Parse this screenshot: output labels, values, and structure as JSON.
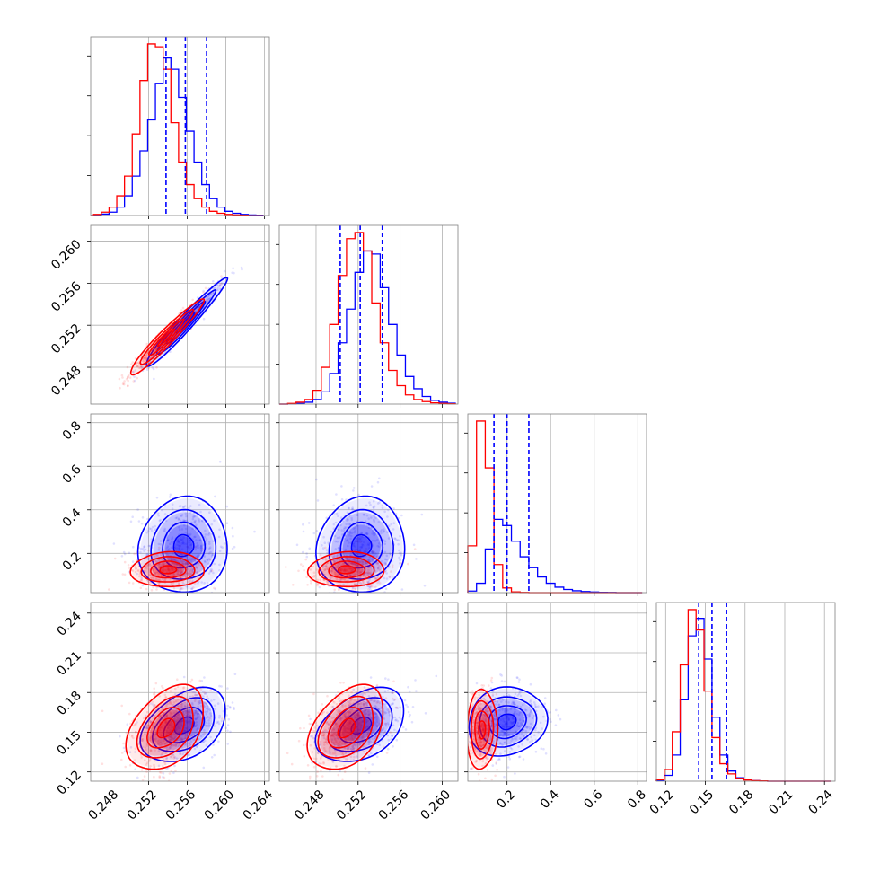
{
  "chart_data": {
    "type": "corner",
    "description_free": true,
    "grid": true,
    "series": [
      {
        "name": "",
        "color": "#0000ff"
      },
      {
        "name": "",
        "color": "#ff0000"
      }
    ],
    "quantile_lines": {
      "style": "dashed",
      "color": "#0000ff"
    },
    "params": [
      {
        "range": [
          0.246,
          0.2645
        ],
        "ticks": [
          0.248,
          0.252,
          0.256,
          0.26,
          0.264
        ],
        "tick_labels": [
          "0.248",
          "0.252",
          "0.256",
          "0.260",
          "0.264"
        ],
        "quantiles": [
          0.2538,
          0.2558,
          0.258
        ],
        "hist_blue": {
          "edges_start": 0.2455,
          "bin_width": 0.0008,
          "values": [
            0,
            2,
            5,
            12,
            30,
            70,
            140,
            230,
            340,
            470,
            560,
            520,
            420,
            300,
            190,
            110,
            60,
            30,
            15,
            8,
            4,
            2,
            1
          ]
        },
        "hist_red": {
          "edges_start": 0.2455,
          "bin_width": 0.0008,
          "values": [
            0,
            4,
            12,
            30,
            70,
            140,
            290,
            480,
            610,
            600,
            520,
            330,
            190,
            110,
            60,
            30,
            15,
            8,
            4,
            2,
            1,
            0,
            0
          ]
        }
      },
      {
        "range": [
          0.2445,
          0.2615
        ],
        "ticks": [
          0.248,
          0.252,
          0.256,
          0.26
        ],
        "tick_labels": [
          "0.248",
          "0.252",
          "0.256",
          "0.260"
        ],
        "quantiles": [
          0.2503,
          0.2522,
          0.2543
        ],
        "hist_blue": {
          "edges_start": 0.2445,
          "bin_width": 0.0008,
          "values": [
            0,
            1,
            2,
            6,
            15,
            40,
            100,
            200,
            310,
            430,
            500,
            490,
            380,
            260,
            160,
            90,
            50,
            25,
            12,
            6,
            3
          ]
        },
        "hist_red": {
          "edges_start": 0.2445,
          "bin_width": 0.0008,
          "values": [
            0,
            2,
            6,
            15,
            45,
            120,
            260,
            420,
            540,
            560,
            500,
            330,
            200,
            110,
            60,
            30,
            15,
            8,
            4,
            2,
            1
          ]
        }
      },
      {
        "range": [
          0.02,
          0.84
        ],
        "ticks": [
          0.2,
          0.4,
          0.6,
          0.8
        ],
        "tick_labels": [
          "0.2",
          "0.4",
          "0.6",
          "0.8"
        ],
        "quantiles": [
          0.14,
          0.2,
          0.3
        ],
        "hist_blue": {
          "edges_start": 0.02,
          "bin_width": 0.04,
          "values": [
            10,
            60,
            280,
            470,
            430,
            330,
            230,
            160,
            100,
            60,
            35,
            20,
            12,
            7,
            4,
            2,
            1,
            0,
            0,
            0
          ]
        },
        "hist_red": {
          "edges_start": 0.02,
          "bin_width": 0.04,
          "values": [
            300,
            1100,
            800,
            180,
            30,
            5,
            1,
            0,
            0,
            0,
            0,
            0,
            0,
            0,
            0,
            0,
            0,
            0,
            0,
            0
          ]
        }
      },
      {
        "range": [
          0.113,
          0.248
        ],
        "ticks": [
          0.12,
          0.15,
          0.18,
          0.21,
          0.24
        ],
        "tick_labels": [
          "0.12",
          "0.15",
          "0.18",
          "0.21",
          "0.24"
        ],
        "quantiles": [
          0.145,
          0.155,
          0.166
        ],
        "hist_blue": {
          "edges_start": 0.113,
          "bin_width": 0.006,
          "values": [
            2,
            20,
            90,
            280,
            500,
            560,
            420,
            220,
            90,
            35,
            12,
            5,
            2,
            1,
            0,
            0,
            0,
            0,
            0,
            0,
            0,
            0
          ]
        },
        "hist_red": {
          "edges_start": 0.113,
          "bin_width": 0.006,
          "values": [
            5,
            40,
            170,
            400,
            590,
            520,
            310,
            150,
            60,
            25,
            10,
            4,
            2,
            1,
            0,
            0,
            0,
            0,
            0,
            0,
            0,
            0
          ]
        }
      }
    ],
    "pairs": [
      {
        "x": 0,
        "y": 1,
        "blue": {
          "center": [
            0.2558,
            0.2522
          ],
          "sd": [
            0.0021,
            0.0021
          ],
          "rho": 0.97
        },
        "red": {
          "center": [
            0.2538,
            0.2508
          ],
          "sd": [
            0.0019,
            0.0018
          ],
          "rho": 0.96
        }
      },
      {
        "x": 0,
        "y": 2,
        "blue": {
          "center": [
            0.2556,
            0.235
          ],
          "sd": [
            0.0023,
            0.11
          ],
          "rho": 0.05
        },
        "red": {
          "center": [
            0.254,
            0.125
          ],
          "sd": [
            0.0019,
            0.04
          ],
          "rho": 0.05
        }
      },
      {
        "x": 1,
        "y": 2,
        "blue": {
          "center": [
            0.2523,
            0.235
          ],
          "sd": [
            0.0021,
            0.11
          ],
          "rho": 0.05
        },
        "red": {
          "center": [
            0.2509,
            0.125
          ],
          "sd": [
            0.0018,
            0.04
          ],
          "rho": 0.05
        }
      },
      {
        "x": 0,
        "y": 3,
        "blue": {
          "center": [
            0.2557,
            0.155
          ],
          "sd": [
            0.0022,
            0.014
          ],
          "rho": 0.4
        },
        "red": {
          "center": [
            0.2538,
            0.153
          ],
          "sd": [
            0.002,
            0.016
          ],
          "rho": 0.4
        }
      },
      {
        "x": 1,
        "y": 3,
        "blue": {
          "center": [
            0.2523,
            0.155
          ],
          "sd": [
            0.0021,
            0.014
          ],
          "rho": 0.4
        },
        "red": {
          "center": [
            0.2509,
            0.153
          ],
          "sd": [
            0.0018,
            0.016
          ],
          "rho": 0.4
        }
      },
      {
        "x": 2,
        "y": 3,
        "blue": {
          "center": [
            0.2,
            0.158
          ],
          "sd": [
            0.09,
            0.013
          ],
          "rho": 0.1
        },
        "red": {
          "center": [
            0.085,
            0.152
          ],
          "sd": [
            0.035,
            0.015
          ],
          "rho": 0.05
        }
      }
    ]
  }
}
